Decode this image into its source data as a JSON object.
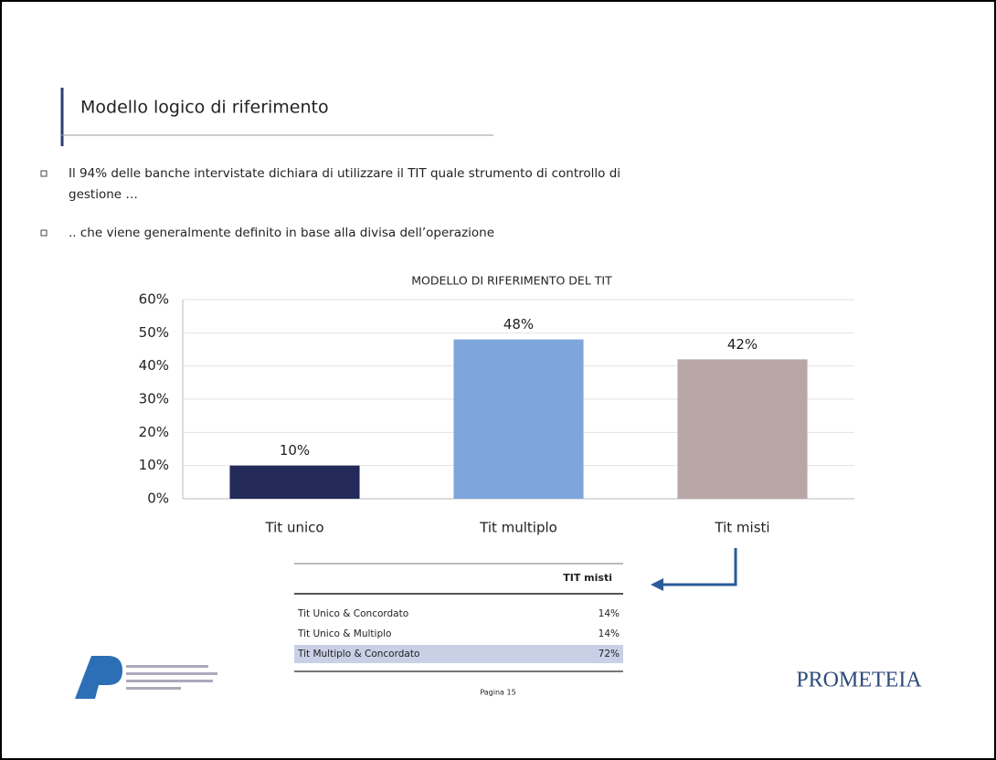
{
  "header": {
    "title": "Modello logico di riferimento"
  },
  "bullets": [
    "Il 94% delle banche intervistate dichiara di utilizzare il TIT quale strumento di controllo di",
    "gestione …",
    ".. che viene generalmente definito in base alla divisa dell’operazione"
  ],
  "chart_data": {
    "type": "bar",
    "title": "MODELLO DI RIFERIMENTO DEL TIT",
    "categories": [
      "Tit unico",
      "Tit multiplo",
      "Tit misti"
    ],
    "values": [
      10,
      48,
      42
    ],
    "value_labels": [
      "10%",
      "48%",
      "42%"
    ],
    "colors": [
      "#232a5a",
      "#7ea6dc",
      "#b9a6a6"
    ],
    "ylim": [
      0,
      60
    ],
    "yticks": [
      {
        "value": 0,
        "label": "0%"
      },
      {
        "value": 10,
        "label": "10%"
      },
      {
        "value": 20,
        "label": "20%"
      },
      {
        "value": 30,
        "label": "30%"
      },
      {
        "value": 40,
        "label": "40%"
      },
      {
        "value": 50,
        "label": "50%"
      },
      {
        "value": 60,
        "label": "60%"
      }
    ],
    "grid": true
  },
  "table": {
    "header": "TIT misti",
    "rows": [
      [
        "Tit Unico & Concordato",
        "14%"
      ],
      [
        "Tit Unico & Multiplo",
        "14%"
      ],
      [
        "Tit Multiplo & Concordato",
        "72%"
      ]
    ]
  },
  "footer": {
    "page": "Pagina 15",
    "brand": "PROMETEIA"
  }
}
